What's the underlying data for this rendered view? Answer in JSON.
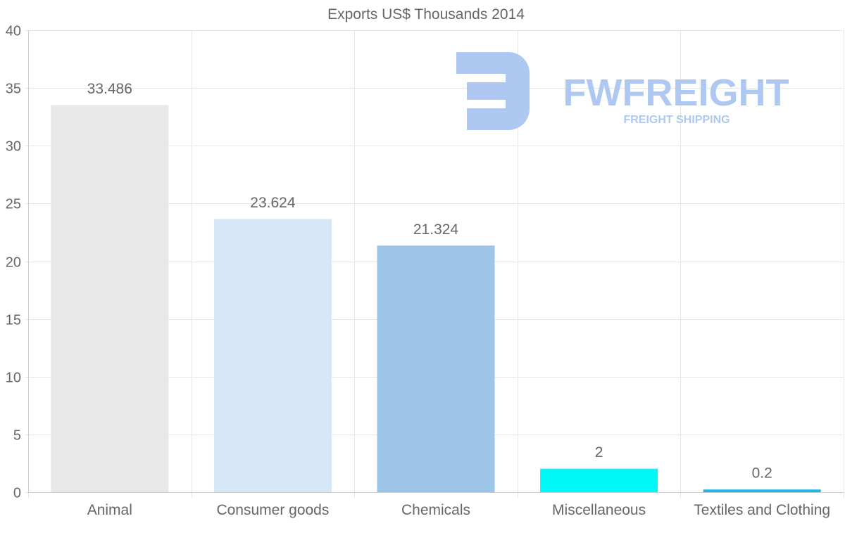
{
  "chart_data": {
    "type": "bar",
    "title": "Exports US$ Thousands 2014",
    "xlabel": "",
    "ylabel": "",
    "categories": [
      "Animal",
      "Consumer goods",
      "Chemicals",
      "Miscellaneous",
      "Textiles and Clothing"
    ],
    "values": [
      33.486,
      23.624,
      21.324,
      2,
      0.2
    ],
    "value_labels": [
      "33.486",
      "23.624",
      "21.324",
      "2",
      "0.2"
    ],
    "colors": [
      "#e8e8e8",
      "#d6e7f8",
      "#9dc5e8",
      "#00f7f7",
      "#1ab6e6"
    ],
    "ylim": [
      0,
      40
    ],
    "yticks": [
      0,
      5,
      10,
      15,
      20,
      25,
      30,
      35,
      40
    ],
    "grid": true,
    "legend": "none"
  },
  "watermark": {
    "brand": "FWFREIGHT",
    "tagline": "FREIGHT SHIPPING",
    "color": "#aec8f2"
  },
  "colors": {
    "text": "#666666",
    "grid": "#e6e6e6",
    "axis": "#cccccc"
  }
}
